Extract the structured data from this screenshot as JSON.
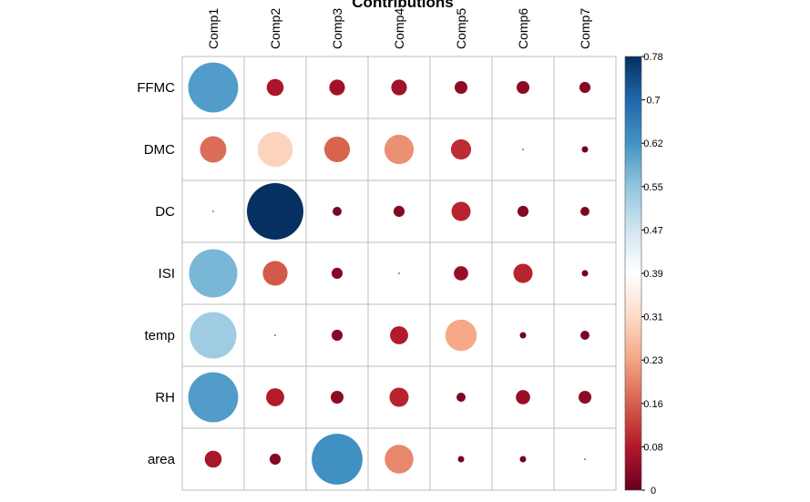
{
  "chart_data": {
    "type": "heatmap",
    "title": "Contributions",
    "columns": [
      "Comp1",
      "Comp2",
      "Comp3",
      "Comp4",
      "Comp5",
      "Comp6",
      "Comp7"
    ],
    "rows": [
      "FFMC",
      "DMC",
      "DC",
      "ISI",
      "temp",
      "RH",
      "area"
    ],
    "values": [
      [
        0.61,
        0.07,
        0.06,
        0.06,
        0.04,
        0.04,
        0.03
      ],
      [
        0.17,
        0.3,
        0.16,
        0.21,
        0.1,
        0.0,
        0.01
      ],
      [
        0.0,
        0.78,
        0.02,
        0.03,
        0.09,
        0.03,
        0.02
      ],
      [
        0.57,
        0.15,
        0.03,
        0.0,
        0.05,
        0.09,
        0.01
      ],
      [
        0.53,
        0.0,
        0.03,
        0.08,
        0.24,
        0.01,
        0.02
      ],
      [
        0.61,
        0.08,
        0.04,
        0.09,
        0.02,
        0.05,
        0.04
      ],
      [
        0.07,
        0.03,
        0.63,
        0.2,
        0.01,
        0.01,
        0.0
      ]
    ],
    "colorbar": {
      "ticks": [
        "0",
        "0.08",
        "0.16",
        "0.23",
        "0.31",
        "0.39",
        "0.47",
        "0.55",
        "0.62",
        "0.7",
        "0.78"
      ],
      "min": 0,
      "max": 0.78,
      "colors": [
        "#67001F",
        "#B2182B",
        "#D6604D",
        "#F4A582",
        "#FDDBC7",
        "#FFFFFF",
        "#D1E5F0",
        "#92C5DE",
        "#4393C3",
        "#2166AC",
        "#053061"
      ]
    },
    "grid": true,
    "legend": "right"
  }
}
